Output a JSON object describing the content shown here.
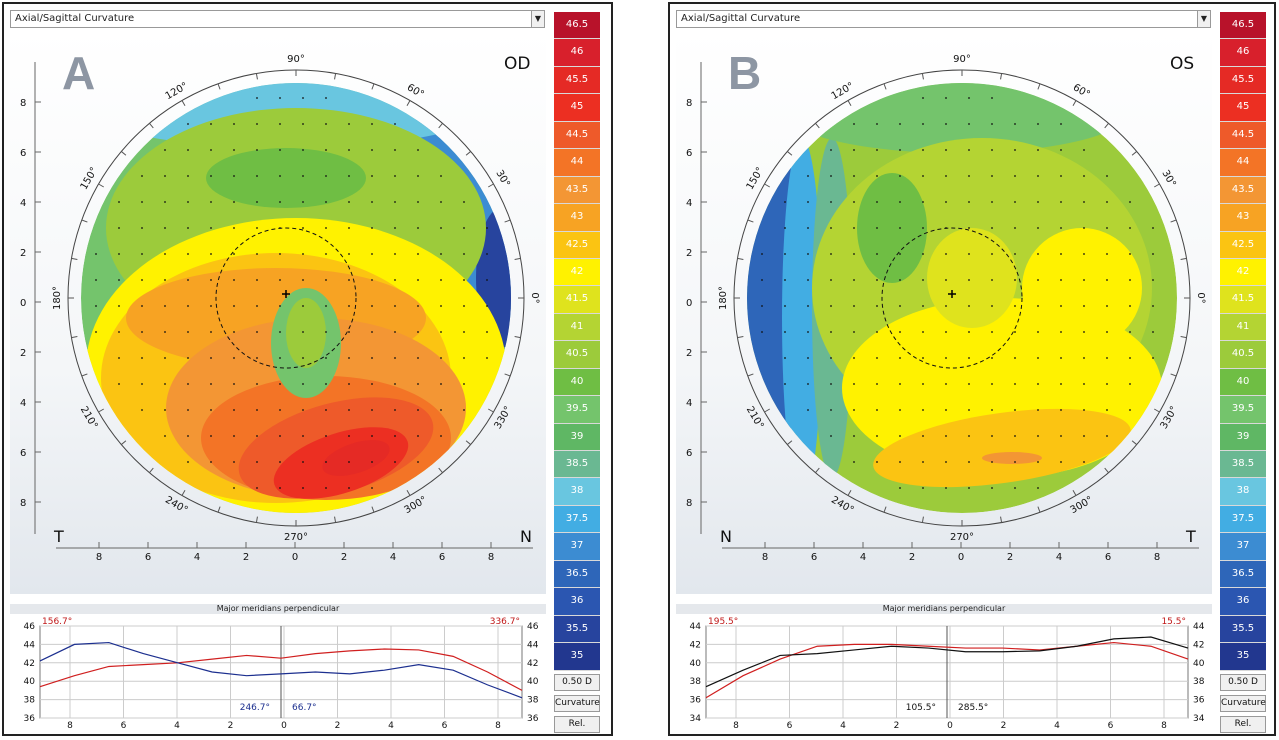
{
  "window_title": "Axial/Sagittal Curvature",
  "color_scale": [
    {
      "label": "46.5",
      "color": "#b8122a"
    },
    {
      "label": "46",
      "color": "#d8202c"
    },
    {
      "label": "45.5",
      "color": "#e52a25"
    },
    {
      "label": "45",
      "color": "#ec2f22"
    },
    {
      "label": "44.5",
      "color": "#ee5a2a"
    },
    {
      "label": "44",
      "color": "#f37426"
    },
    {
      "label": "43.5",
      "color": "#f39634"
    },
    {
      "label": "43",
      "color": "#f7a323"
    },
    {
      "label": "42.5",
      "color": "#fbc412"
    },
    {
      "label": "42",
      "color": "#fff200"
    },
    {
      "label": "41.5",
      "color": "#dfe31d"
    },
    {
      "label": "41",
      "color": "#b4d433"
    },
    {
      "label": "40.5",
      "color": "#9ccb3b"
    },
    {
      "label": "40",
      "color": "#6fbe44"
    },
    {
      "label": "39.5",
      "color": "#74c46c"
    },
    {
      "label": "39",
      "color": "#5fb764"
    },
    {
      "label": "38.5",
      "color": "#6ab892"
    },
    {
      "label": "38",
      "color": "#69c6e0"
    },
    {
      "label": "37.5",
      "color": "#42ade3"
    },
    {
      "label": "37",
      "color": "#3c8cd2"
    },
    {
      "label": "36.5",
      "color": "#2e66b9"
    },
    {
      "label": "36",
      "color": "#2b56b1"
    },
    {
      "label": "35.5",
      "color": "#27449e"
    },
    {
      "label": "35",
      "color": "#22378f"
    }
  ],
  "step_button": "0.50 D",
  "mode_button": "Curvature",
  "rel_button": "Rel.",
  "graph_title": "Major meridians perpendicular",
  "degree_labels": [
    "90°",
    "60°",
    "30°",
    "0°",
    "330°",
    "300°",
    "270°",
    "240°",
    "210°",
    "180°",
    "150°",
    "120°"
  ],
  "y_axis_labels": [
    "8",
    "6",
    "4",
    "2",
    "0",
    "2",
    "4",
    "6",
    "8"
  ],
  "x_axis_labels": [
    "8",
    "6",
    "4",
    "2",
    "0",
    "2",
    "4",
    "6",
    "8"
  ],
  "panels": [
    {
      "letter": "A",
      "eye": "OD",
      "left_corner": "T",
      "right_corner": "N",
      "graph": {
        "y_labels": [
          "46",
          "44",
          "42",
          "40",
          "38",
          "36"
        ],
        "angle_left": "156.7°",
        "angle_right": "336.7°",
        "angle_mid_left": "246.7°",
        "angle_mid_right": "66.7°",
        "red_series": [
          39.4,
          40.6,
          41.6,
          41.8,
          42.0,
          42.4,
          42.8,
          42.5,
          43.0,
          43.3,
          43.5,
          43.4,
          42.7,
          41.0,
          39.0
        ],
        "blue_series": [
          42.2,
          44.0,
          44.2,
          43.0,
          42.0,
          41.0,
          40.6,
          40.8,
          41.0,
          40.8,
          41.2,
          41.8,
          41.2,
          39.6,
          38.2
        ]
      }
    },
    {
      "letter": "B",
      "eye": "OS",
      "left_corner": "N",
      "right_corner": "T",
      "graph": {
        "y_labels": [
          "44",
          "42",
          "40",
          "38",
          "36",
          "34"
        ],
        "angle_left": "195.5°",
        "angle_right": "15.5°",
        "angle_mid_left": "105.5°",
        "angle_mid_right": "285.5°",
        "red_series": [
          36.2,
          38.6,
          40.4,
          41.8,
          42.0,
          42.0,
          41.8,
          41.6,
          41.6,
          41.4,
          41.8,
          42.2,
          41.8,
          40.4
        ],
        "black_series": [
          37.4,
          39.2,
          40.8,
          41.0,
          41.4,
          41.8,
          41.6,
          41.2,
          41.2,
          41.3,
          41.8,
          42.6,
          42.8,
          41.6
        ]
      }
    }
  ]
}
